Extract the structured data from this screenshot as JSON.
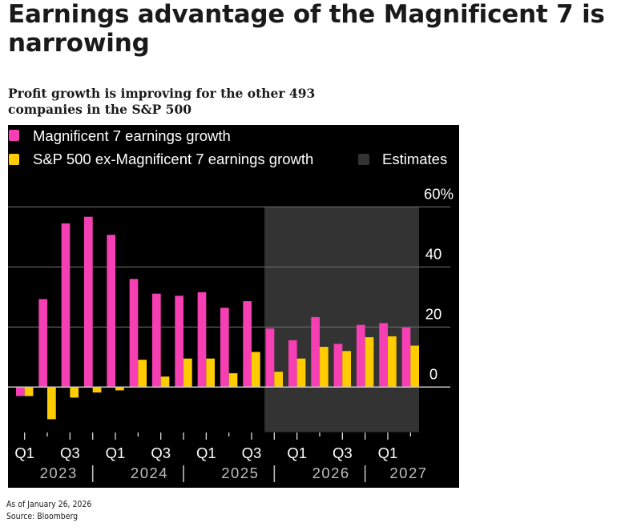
{
  "header": {
    "title": "Earnings advantage of the Magnificent 7 is narrowing",
    "subtitle": "Profit growth is improving for the other 493 companies in the S&P 500"
  },
  "footer": {
    "as_of": "As of January 26, 2026",
    "source": "Source: Bloomberg"
  },
  "chart_data": {
    "type": "bar",
    "title": "Earnings advantage of the Magnificent 7 is narrowing",
    "subtitle": "Profit growth is improving for the other 493 companies in the S&P 500",
    "xlabel": "",
    "ylabel": "",
    "ylim": [
      -15,
      60
    ],
    "y_unit": "%",
    "y_ticks": [
      0,
      20,
      40,
      60
    ],
    "y_tick_labels": [
      "0",
      "20",
      "40",
      "60%"
    ],
    "y_axis_side": "right",
    "grid": true,
    "legend_placement": "top-left",
    "colors": {
      "mag7": "#F53FB3",
      "ex_mag7": "#FFCC00",
      "estimates": "#333333",
      "background": "#000000"
    },
    "categories": [
      "Q1 2023",
      "Q2 2023",
      "Q3 2023",
      "Q4 2023",
      "Q1 2024",
      "Q2 2024",
      "Q3 2024",
      "Q4 2024",
      "Q1 2025",
      "Q2 2025",
      "Q3 2025",
      "Q4 2025",
      "Q1 2026",
      "Q2 2026",
      "Q3 2026",
      "Q4 2026",
      "Q1 2027",
      "Q2 2027"
    ],
    "tick_labels": [
      "Q1",
      "",
      "Q3",
      "",
      "Q1",
      "",
      "Q3",
      "",
      "Q1",
      "",
      "Q3",
      "",
      "Q1",
      "",
      "Q3",
      "",
      "Q1",
      ""
    ],
    "year_labels": [
      {
        "label": "2023",
        "start_index": 0,
        "end_index": 3
      },
      {
        "label": "2024",
        "start_index": 4,
        "end_index": 7
      },
      {
        "label": "2025",
        "start_index": 8,
        "end_index": 11
      },
      {
        "label": "2026",
        "start_index": 12,
        "end_index": 15
      },
      {
        "label": "2027",
        "start_index": 16,
        "end_index": 17
      }
    ],
    "series": [
      {
        "name": "Magnificent 7 earnings growth",
        "key": "mag7",
        "values": [
          -3,
          29.3,
          54.5,
          56.7,
          50.7,
          36,
          31.1,
          30.4,
          31.6,
          26.4,
          28.6,
          19.5,
          15.6,
          23.3,
          14.4,
          20.7,
          21.3,
          19.8
        ]
      },
      {
        "name": "S&P 500 ex-Magnificent 7 earnings growth",
        "key": "ex_mag7",
        "values": [
          -3,
          -10.7,
          -3.5,
          -1.8,
          -1.1,
          9.1,
          3.5,
          9.5,
          9.5,
          4.6,
          11.7,
          5.1,
          9.5,
          13.4,
          12,
          16.6,
          16.9,
          13.8
        ]
      }
    ],
    "estimates": {
      "label": "Estimates",
      "start_category": "Q4 2025",
      "end_category": "Q2 2027"
    },
    "legend": [
      {
        "label": "Magnificent 7 earnings growth",
        "key": "mag7"
      },
      {
        "label": "S&P 500 ex-Magnificent 7 earnings growth",
        "key": "ex_mag7"
      },
      {
        "label": "Estimates",
        "key": "estimates"
      }
    ]
  }
}
